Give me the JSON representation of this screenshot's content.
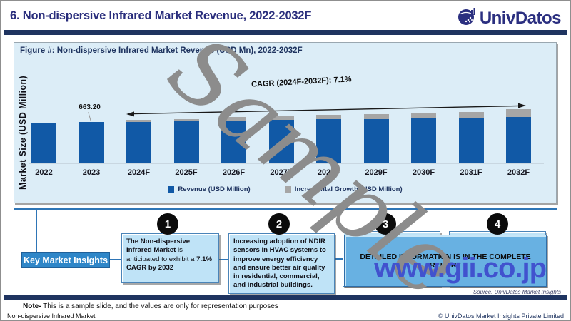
{
  "header": {
    "title": "6. Non-dispersive Infrared Market Revenue, 2022-2032F",
    "brand": "UnivDatos"
  },
  "chart_data": {
    "type": "bar",
    "stacked": true,
    "title": "Figure #: Non-dispersive Infrared Market Revenue (USD Mn), 2022-2032F",
    "ylabel": "Market Size (USD Million)",
    "categories": [
      "2022",
      "2023",
      "2024F",
      "2025F",
      "2026F",
      "2027F",
      "2028F",
      "2029F",
      "2030F",
      "2031F",
      "2032F"
    ],
    "series": [
      {
        "name": "Revenue (USD Million)",
        "color": "#1159A6",
        "values": [
          640,
          663.2,
          665,
          670,
          685,
          697,
          704,
          714,
          724,
          733,
          743
        ]
      },
      {
        "name": "Incremental Growth (USD Million)",
        "color": "#A6A6A6",
        "values": [
          0,
          0,
          38,
          45,
          55,
          63,
          69,
          75,
          85,
          96,
          124
        ]
      }
    ],
    "data_labels": {
      "2023": "663.20"
    },
    "annotation": "CAGR (2024F-2032F): 7.1%",
    "legend_position": "bottom"
  },
  "insights": {
    "label": "Key Market Insights",
    "numbers": [
      "1",
      "2",
      "3",
      "4"
    ],
    "box1": {
      "segments": [
        {
          "text": "The Non-dispersive Infrared Market",
          "bold": true
        },
        {
          "text": " is anticipated to exhibit a ",
          "bold": false
        },
        {
          "text": "7.1% CAGR by 2032",
          "bold": true
        }
      ]
    },
    "box2": "Increasing adoption of NDIR sensors in HVAC systems to improve energy efficiency and ensure better air quality in residential, commercial, and industrial buildings.",
    "banner": "DETAILED INFORMATION IS IN THE COMPLETE REPORT"
  },
  "watermarks": {
    "sample": "Sample",
    "site": "www.gii.co.jp"
  },
  "source": "Source: UnivDatos Market Insights",
  "note": {
    "bold": "Note-",
    "rest": " This is a sample slide, and the values are only for representation purposes"
  },
  "footer": {
    "left": "Non-dispersive Infrared Market",
    "right": "© UnivDatos Market Insights Private Limited"
  }
}
